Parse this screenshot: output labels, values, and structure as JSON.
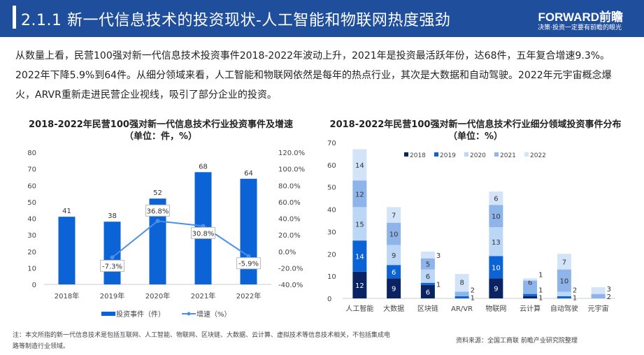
{
  "header": {
    "title": "2.1.1 新一代信息技术的投资现状-人工智能和物联网热度强劲",
    "logo": "FORWARD前瞻",
    "slogan": "决策·投资一定要有前瞻的眼光"
  },
  "intro": "从数量上看，民营100强对新一代信息技术投资事件2018-2022年波动上升，2021年是投资最活跃年份，达68件，五年复合增速9.3%。2022年下降5.9%到64件。从细分领域来看，人工智能和物联网依然是每年的热点行业，其次是大数据和自动驾驶。2022年元宇宙概念爆火，ARVR重新走进民营企业视线，吸引了部分企业的投资。",
  "footer": {
    "note": "注：本文所指的新一代信息技术是包括互联网、人工智能、物联网、区块链、大数据、云计算、虚拟技术等信息技术相关，不包括集成电路等制造行业领域。",
    "source": "资料来源：全国工商联 前瞻产业研究院整理"
  },
  "chart_data": [
    {
      "type": "bar+line",
      "title": "2018-2022年民营100强对新一代信息技术行业投资事件及增速（单位：件，%）",
      "categories": [
        "2018年",
        "2019年",
        "2020年",
        "2021年",
        "2022年"
      ],
      "series": [
        {
          "name": "投资事件（件）",
          "type": "bar",
          "values": [
            41,
            38,
            52,
            68,
            64
          ],
          "color": "#0b63d6",
          "axis": "left"
        },
        {
          "name": "增速（%）",
          "type": "line",
          "values": [
            null,
            -7.3,
            36.8,
            30.8,
            -5.9
          ],
          "labels": [
            "",
            "-7.3%",
            "36.8%",
            "30.8%",
            "-5.9%"
          ],
          "color": "#4a8fe8",
          "axis": "right"
        }
      ],
      "ylim": [
        0,
        80
      ],
      "yticks": [
        "0",
        "10",
        "20",
        "30",
        "40",
        "50",
        "60",
        "70",
        "80"
      ],
      "y2lim": [
        -40,
        120
      ],
      "y2ticks": [
        "-40.0%",
        "-20.0%",
        "0.0%",
        "20.0%",
        "40.0%",
        "60.0%",
        "80.0%",
        "100.0%",
        "120.0%"
      ],
      "legend": "bottom",
      "grid": false
    },
    {
      "type": "stacked-bar",
      "title": "2018-2022年民营100强对新一代信息技术行业细分领域投资事件分布（单位：%）",
      "categories": [
        "人工智能",
        "大数据",
        "区块链",
        "AR/VR",
        "物联网",
        "云计算",
        "自动驾驶",
        "元宇宙"
      ],
      "series": [
        {
          "name": "2018",
          "values": [
            12,
            9,
            6,
            0,
            9,
            1,
            0,
            0
          ],
          "color": "#0a2463"
        },
        {
          "name": "2019",
          "values": [
            14,
            6,
            1,
            1,
            10,
            1,
            1,
            0
          ],
          "color": "#0b63d6"
        },
        {
          "name": "2020",
          "values": [
            15,
            9,
            6,
            0,
            13,
            0,
            2,
            0
          ],
          "color": "#bcd6f5"
        },
        {
          "name": "2021",
          "values": [
            12,
            10,
            5,
            2,
            10,
            6,
            10,
            2
          ],
          "color": "#8fb4ea"
        },
        {
          "name": "2022",
          "values": [
            14,
            7,
            3,
            8,
            6,
            1,
            7,
            3
          ],
          "color": "#d4e4f8"
        }
      ],
      "ylim": [
        0,
        70
      ],
      "yticks": [
        "0",
        "10",
        "20",
        "30",
        "40",
        "50",
        "60",
        "70"
      ],
      "legend": "top",
      "grid": false
    }
  ]
}
